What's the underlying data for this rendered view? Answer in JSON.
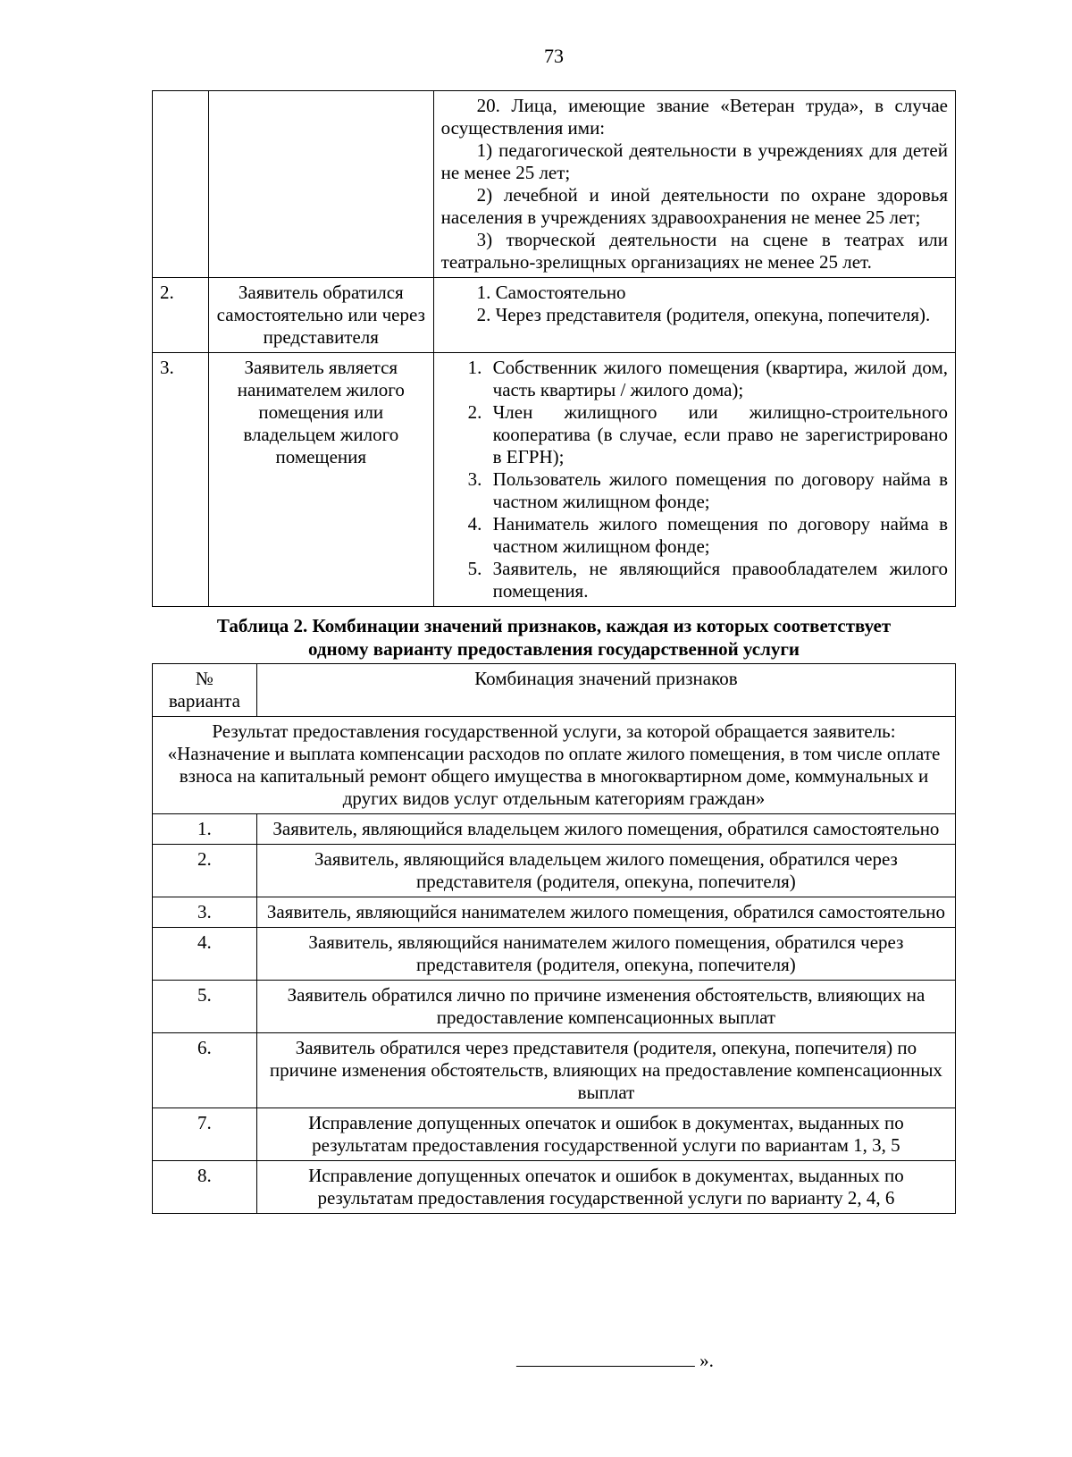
{
  "page_number": "73",
  "table1": {
    "rows": [
      {
        "num": "",
        "label": "",
        "content_lines": [
          {
            "indent": true,
            "text": "20. Лица, имеющие звание «Ветеран труда», в случае осуществления ими:"
          },
          {
            "indent": true,
            "text": "1) педагогической деятельности в учреждениях для детей не менее 25 лет;"
          },
          {
            "indent": true,
            "text": "2) лечебной и иной деятельности по охране здоровья населения в учреждениях здравоохранения не менее 25 лет;"
          },
          {
            "indent": true,
            "text": "3) творческой деятельности на сцене в театрах или театрально-зрелищных организациях не менее 25 лет."
          }
        ]
      },
      {
        "num": "2.",
        "label": "Заявитель обратился самостоятельно или через представителя",
        "content_lines": [
          {
            "indent": true,
            "text": "1.    Самостоятельно"
          },
          {
            "indent": true,
            "text": "2.    Через представителя (родителя, опекуна, попечителя)."
          }
        ]
      },
      {
        "num": "3.",
        "label": "Заявитель является нанимателем жилого помещения или владельцем жилого помещения",
        "list": [
          {
            "n": "1.",
            "t": "Собственник жилого помещения (квартира, жилой дом, часть квартиры / жилого дома);"
          },
          {
            "n": "2.",
            "t": "Член жилищного или жилищно-строительного кооператива (в случае, если право не зарегистрировано в ЕГРН);"
          },
          {
            "n": "3.",
            "t": "Пользователь жилого помещения по договору найма в частном жилищном фонде;"
          },
          {
            "n": "4.",
            "t": "Наниматель жилого помещения по договору найма в частном жилищном фонде;"
          },
          {
            "n": "5.",
            "t": "Заявитель, не являющийся правообладателем жилого помещения."
          }
        ]
      }
    ]
  },
  "table2_caption_line1": "Таблица 2. Комбинации значений признаков, каждая из которых соответствует",
  "table2_caption_line2": "одному варианту предоставления государственной услуги",
  "table2": {
    "header_col1": "№ варианта",
    "header_col2": "Комбинация значений признаков",
    "spanning_row": "Результат предоставления государственной услуги, за которой обращается заявитель: «Назначение и выплата компенсации расходов по оплате жилого помещения, в том числе оплате взноса на капитальный ремонт общего имущества в многоквартирном доме, коммунальных и других видов услуг отдельным категориям граждан»",
    "rows": [
      {
        "n": "1.",
        "t": "Заявитель, являющийся владельцем жилого помещения, обратился самостоятельно"
      },
      {
        "n": "2.",
        "t": "Заявитель, являющийся владельцем жилого помещения, обратился через представителя (родителя, опекуна, попечителя)"
      },
      {
        "n": "3.",
        "t": "Заявитель, являющийся нанимателем жилого помещения, обратился самостоятельно"
      },
      {
        "n": "4.",
        "t": "Заявитель, являющийся нанимателем жилого помещения, обратился через представителя (родителя, опекуна, попечителя)"
      },
      {
        "n": "5.",
        "t": "Заявитель обратился лично по причине изменения обстоятельств, влияющих на предоставление компенсационных выплат"
      },
      {
        "n": "6.",
        "t": "Заявитель обратился через представителя (родителя, опекуна, попечителя) по причине изменения обстоятельств, влияющих на предоставление компенсационных выплат"
      },
      {
        "n": "7.",
        "t": "Исправление допущенных опечаток и ошибок в документах, выданных по результатам предоставления государственной услуги по вариантам 1, 3, 5"
      },
      {
        "n": "8.",
        "t": "Исправление допущенных опечаток и ошибок в документах, выданных по результатам предоставления государственной услуги по варианту 2, 4, 6"
      }
    ]
  },
  "footer_suffix": "».",
  "colors": {
    "text": "#000000",
    "background": "#ffffff",
    "border": "#000000"
  }
}
